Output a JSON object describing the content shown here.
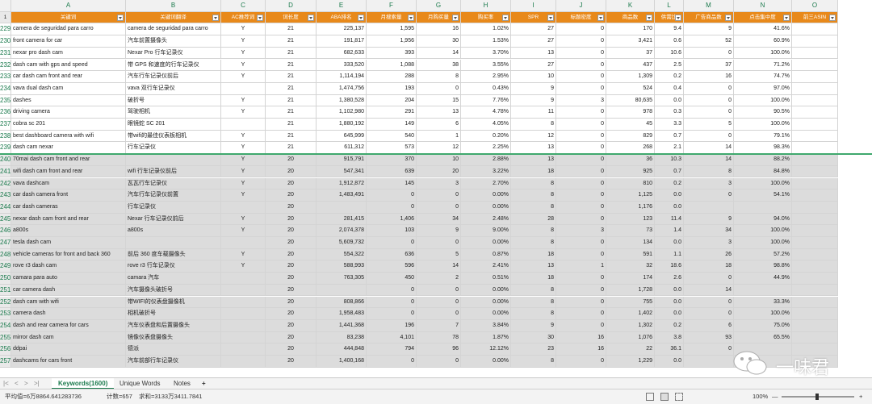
{
  "columns": [
    {
      "letter": "A",
      "label": "关键词",
      "w": 142,
      "align": "left"
    },
    {
      "letter": "B",
      "label": "关键词翻译",
      "w": 118,
      "align": "left"
    },
    {
      "letter": "C",
      "label": "AC推荐词",
      "w": 55,
      "align": "ctr"
    },
    {
      "letter": "D",
      "label": "词长度",
      "w": 63,
      "align": "ctr"
    },
    {
      "letter": "E",
      "label": "ABA排名",
      "w": 62,
      "align": "num"
    },
    {
      "letter": "F",
      "label": "月搜索量",
      "w": 62,
      "align": "num"
    },
    {
      "letter": "G",
      "label": "月购买量",
      "w": 55,
      "align": "num"
    },
    {
      "letter": "H",
      "label": "购买率",
      "w": 62,
      "align": "num"
    },
    {
      "letter": "I",
      "label": "SPR",
      "w": 56,
      "align": "num"
    },
    {
      "letter": "J",
      "label": "标题密度",
      "w": 62,
      "align": "num"
    },
    {
      "letter": "K",
      "label": "商品数",
      "w": 60,
      "align": "num"
    },
    {
      "letter": "L",
      "label": "供需比",
      "w": 36,
      "align": "num"
    },
    {
      "letter": "M",
      "label": "广告商品数",
      "w": 62,
      "align": "num"
    },
    {
      "letter": "N",
      "label": "点击集中度",
      "w": 72,
      "align": "num"
    },
    {
      "letter": "O",
      "label": "前三ASIN",
      "w": 57,
      "align": "left"
    }
  ],
  "rows": [
    {
      "n": "229",
      "c": [
        "camera de seguridad para carro",
        "camera de seguridad para carro",
        "Y",
        "21",
        "225,137",
        "1,595",
        "16",
        "1.02%",
        "27",
        "0",
        "170",
        "9.4",
        "9",
        "41.6%",
        ""
      ]
    },
    {
      "n": "230",
      "c": [
        "front camera for car",
        "汽车前置摄像头",
        "Y",
        "21",
        "191,817",
        "1,956",
        "30",
        "1.53%",
        "27",
        "0",
        "3,421",
        "0.6",
        "52",
        "60.9%",
        ""
      ]
    },
    {
      "n": "231",
      "c": [
        "nexar pro dash cam",
        "Nexar Pro 行车记录仪",
        "Y",
        "21",
        "682,633",
        "393",
        "14",
        "3.70%",
        "13",
        "0",
        "37",
        "10.6",
        "0",
        "100.0%",
        ""
      ]
    },
    {
      "n": "232",
      "c": [
        "dash cam with gps and speed",
        "带 GPS 和速度的行车记录仪",
        "Y",
        "21",
        "333,520",
        "1,088",
        "38",
        "3.55%",
        "27",
        "0",
        "437",
        "2.5",
        "37",
        "71.2%",
        ""
      ]
    },
    {
      "n": "233",
      "c": [
        "car dash cam front and rear",
        "汽车行车记录仪前后",
        "Y",
        "21",
        "1,114,194",
        "288",
        "8",
        "2.95%",
        "10",
        "0",
        "1,309",
        "0.2",
        "16",
        "74.7%",
        ""
      ]
    },
    {
      "n": "234",
      "c": [
        "vava dual dash cam",
        "vava 双行车记录仪",
        "",
        "21",
        "1,474,756",
        "193",
        "0",
        "0.43%",
        "9",
        "0",
        "524",
        "0.4",
        "0",
        "97.0%",
        ""
      ]
    },
    {
      "n": "235",
      "c": [
        "dashes",
        "破折号",
        "Y",
        "21",
        "1,380,528",
        "204",
        "15",
        "7.76%",
        "9",
        "3",
        "80,635",
        "0.0",
        "0",
        "100.0%",
        ""
      ]
    },
    {
      "n": "236",
      "c": [
        "driving camera",
        "驾驶相机",
        "Y",
        "21",
        "1,102,980",
        "291",
        "13",
        "4.78%",
        "11",
        "0",
        "978",
        "0.3",
        "0",
        "90.5%",
        ""
      ]
    },
    {
      "n": "237",
      "c": [
        "cobra sc 201",
        "眼镜蛇 SC 201",
        "",
        "21",
        "1,880,192",
        "149",
        "6",
        "4.05%",
        "8",
        "0",
        "45",
        "3.3",
        "5",
        "100.0%",
        ""
      ]
    },
    {
      "n": "238",
      "c": [
        "best dashboard camera with wifi",
        "带wifi的最佳仪表板相机",
        "Y",
        "21",
        "645,999",
        "540",
        "1",
        "0.20%",
        "12",
        "0",
        "829",
        "0.7",
        "0",
        "79.1%",
        ""
      ]
    },
    {
      "n": "239",
      "c": [
        "dash cam nexar",
        "行车记录仪",
        "Y",
        "21",
        "611,312",
        "573",
        "12",
        "2.25%",
        "13",
        "0",
        "268",
        "2.1",
        "14",
        "98.3%",
        ""
      ]
    },
    {
      "n": "240",
      "c": [
        "70mai dash cam front and rear",
        "",
        "Y",
        "20",
        "915,791",
        "370",
        "10",
        "2.88%",
        "13",
        "0",
        "36",
        "10.3",
        "14",
        "88.2%",
        ""
      ]
    },
    {
      "n": "241",
      "c": [
        "wifi dash cam front and rear",
        "wifi 行车记录仪前后",
        "Y",
        "20",
        "547,341",
        "639",
        "20",
        "3.22%",
        "18",
        "0",
        "925",
        "0.7",
        "8",
        "84.8%",
        ""
      ]
    },
    {
      "n": "242",
      "c": [
        "vava dashcam",
        "瓦瓦行车记录仪",
        "Y",
        "20",
        "1,912,872",
        "145",
        "3",
        "2.70%",
        "8",
        "0",
        "810",
        "0.2",
        "3",
        "100.0%",
        ""
      ]
    },
    {
      "n": "243",
      "c": [
        "car dash camera front",
        "汽车行车记录仪前置",
        "Y",
        "20",
        "1,483,491",
        "0",
        "0",
        "0.00%",
        "8",
        "0",
        "1,125",
        "0.0",
        "0",
        "54.1%",
        ""
      ]
    },
    {
      "n": "244",
      "c": [
        "car dash cameras",
        "行车记录仪",
        "",
        "20",
        "",
        "0",
        "0",
        "0.00%",
        "8",
        "0",
        "1,176",
        "0.0",
        "",
        "",
        " "
      ]
    },
    {
      "n": "245",
      "c": [
        "nexar dash cam front and rear",
        "Nexar 行车记录仪前后",
        "Y",
        "20",
        "281,415",
        "1,406",
        "34",
        "2.48%",
        "28",
        "0",
        "123",
        "11.4",
        "9",
        "94.0%",
        ""
      ]
    },
    {
      "n": "246",
      "c": [
        "a800s",
        "a800s",
        "Y",
        "20",
        "2,074,378",
        "103",
        "9",
        "9.00%",
        "8",
        "3",
        "73",
        "1.4",
        "34",
        "100.0%",
        ""
      ]
    },
    {
      "n": "247",
      "c": [
        "tesla dash cam",
        "",
        "",
        "20",
        "5,609,732",
        "0",
        "0",
        "0.00%",
        "8",
        "0",
        "134",
        "0.0",
        "3",
        "100.0%",
        ""
      ]
    },
    {
      "n": "248",
      "c": [
        "vehicle cameras for front and back 360",
        "前后 360 度车载摄像头",
        "Y",
        "20",
        "554,322",
        "636",
        "5",
        "0.87%",
        "18",
        "0",
        "591",
        "1.1",
        "26",
        "57.2%",
        ""
      ]
    },
    {
      "n": "249",
      "c": [
        "rove r3 dash cam",
        "rove r3 行车记录仪",
        "Y",
        "20",
        "588,993",
        "596",
        "14",
        "2.41%",
        "13",
        "1",
        "32",
        "18.6",
        "18",
        "98.8%",
        ""
      ]
    },
    {
      "n": "250",
      "c": [
        "camara para auto",
        "camara 汽车",
        "",
        "20",
        "763,305",
        "450",
        "2",
        "0.51%",
        "18",
        "0",
        "174",
        "2.6",
        "0",
        "44.9%",
        ""
      ]
    },
    {
      "n": "251",
      "c": [
        "car camera dash",
        "汽车摄像头破折号",
        "",
        "20",
        "",
        "0",
        "0",
        "0.00%",
        "8",
        "0",
        "1,728",
        "0.0",
        "14",
        "",
        ""
      ]
    },
    {
      "n": "252",
      "c": [
        "dash cam with wifi",
        "带WIFI的仪表盘摄像机",
        "",
        "20",
        "808,866",
        "0",
        "0",
        "0.00%",
        "8",
        "0",
        "755",
        "0.0",
        "0",
        "33.3%",
        ""
      ]
    },
    {
      "n": "253",
      "c": [
        "camera dash",
        "相机破折号",
        "",
        "20",
        "1,958,483",
        "0",
        "0",
        "0.00%",
        "8",
        "0",
        "1,402",
        "0.0",
        "0",
        "100.0%",
        ""
      ]
    },
    {
      "n": "254",
      "c": [
        "dash and rear camera for cars",
        "汽车仪表盘和后置摄像头",
        "",
        "20",
        "1,441,368",
        "196",
        "7",
        "3.84%",
        "9",
        "0",
        "1,302",
        "0.2",
        "6",
        "75.0%",
        ""
      ]
    },
    {
      "n": "255",
      "c": [
        "mirror dash cam",
        "镜像仪表盘摄像头",
        "",
        "20",
        "83,238",
        "4,101",
        "78",
        "1.87%",
        "30",
        "16",
        "1,076",
        "3.8",
        "93",
        "65.5%",
        ""
      ]
    },
    {
      "n": "256",
      "c": [
        "ddpai",
        "德派",
        "",
        "20",
        "444,848",
        "794",
        "96",
        "12.12%",
        "23",
        "16",
        "22",
        "36.1",
        "0",
        "",
        ""
      ]
    },
    {
      "n": "257",
      "c": [
        "dashcams for cars front",
        "汽车前部行车记录仪",
        "",
        "20",
        "1,400,168",
        "0",
        "0",
        "0.00%",
        "8",
        "0",
        "1,229",
        "0.0",
        "",
        "",
        " "
      ]
    }
  ],
  "tabs": {
    "active": "Keywords(1600)",
    "second": "Unique Words",
    "third": "Notes",
    "add": "+"
  },
  "nav": {
    "first": "|<",
    "prev": "<",
    "next": ">",
    "last": ">|"
  },
  "status": {
    "avg": "平均值=6万8864.641283736",
    "count": "计数=657",
    "sum": "求和=3133万3411.7841",
    "zoom": "100%",
    "minus": "—",
    "plus": "+"
  },
  "watermark": {
    "text": "一味君"
  }
}
